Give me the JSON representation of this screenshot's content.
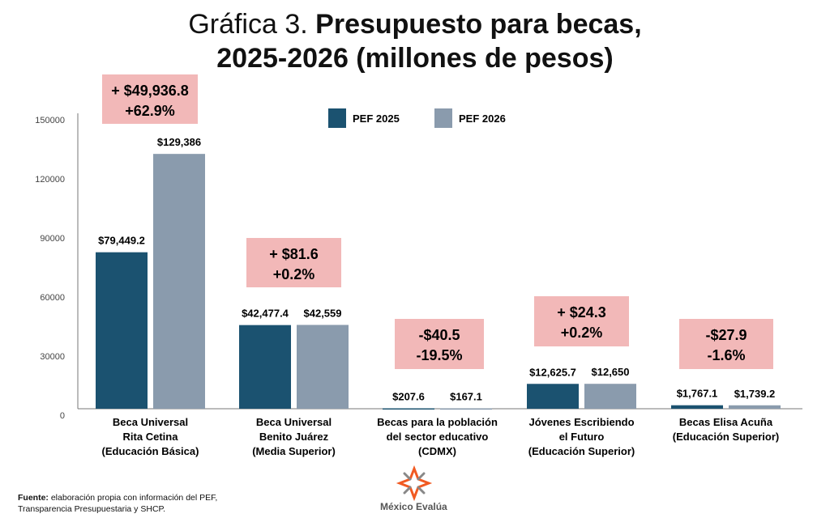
{
  "title_light": "Gráfica 3.",
  "title_bold_1": "Presupuesto para becas,",
  "title_bold_2": "2025-2026 (millones de pesos)",
  "footer": {
    "label": "Fuente:",
    "text": " elaboración propia con información del PEF,",
    "line2": "Transparencia Presupuestaria y SHCP."
  },
  "brand": "México Evalúa",
  "chart_data": {
    "type": "bar",
    "title": "Gráfica 3. Presupuesto para becas, 2025-2026 (millones de pesos)",
    "ylim": [
      0,
      150000
    ],
    "yticks": [
      "0",
      "30000",
      "60000",
      "90000",
      "120000",
      "150000"
    ],
    "legend_position": "top-center",
    "categories": [
      [
        "Beca Universal",
        "Rita Cetina",
        "(Educación Básica)"
      ],
      [
        "Beca Universal",
        "Benito Juárez",
        "(Media Superior)"
      ],
      [
        "Becas para la población",
        "del sector educativo",
        "(CDMX)"
      ],
      [
        "Jóvenes Escribiendo",
        "el Futuro",
        "(Educación Superior)"
      ],
      [
        "Becas Elisa Acuña",
        "(Educación Superior)"
      ]
    ],
    "series": [
      {
        "name": "PEF 2025",
        "color": "#1b5270",
        "values": [
          79449.2,
          42477.4,
          207.6,
          12625.7,
          1767.1
        ],
        "labels": [
          "$79,449.2",
          "$42,477.4",
          "$207.6",
          "$12,625.7",
          "$1,767.1"
        ]
      },
      {
        "name": "PEF 2026",
        "color": "#8a9bad",
        "values": [
          129386,
          42559,
          167.1,
          12650,
          1739.2
        ],
        "labels": [
          "$129,386",
          "$42,559",
          "$167.1",
          "$12,650",
          "$1,739.2"
        ]
      }
    ],
    "annotations": [
      [
        "+ $49,936.8",
        "+62.9%"
      ],
      [
        "+ $81.6",
        "+0.2%"
      ],
      [
        "-$40.5",
        "-19.5%"
      ],
      [
        "+ $24.3",
        "+0.2%"
      ],
      [
        "-$27.9",
        "-1.6%"
      ]
    ]
  }
}
